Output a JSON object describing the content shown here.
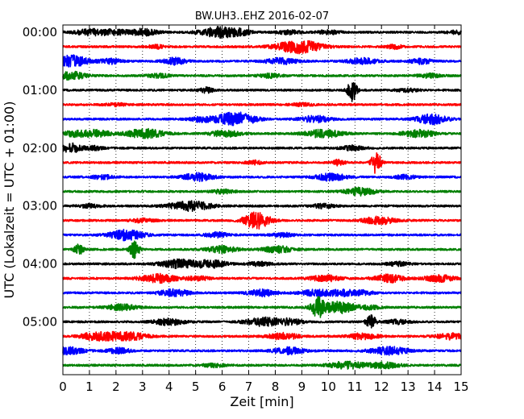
{
  "chart_data": {
    "type": "line",
    "title": "BW.UH3..EHZ 2016-02-07",
    "xlabel": "Zeit  [min]",
    "ylabel": "UTC (Lokalzeit = UTC + 01:00)",
    "xlim": [
      0,
      15
    ],
    "x_ticks": [
      "0",
      "1",
      "2",
      "3",
      "4",
      "5",
      "6",
      "7",
      "8",
      "9",
      "10",
      "11",
      "12",
      "13",
      "14",
      "15"
    ],
    "y_tick_labels": [
      "00:00",
      "01:00",
      "02:00",
      "03:00",
      "04:00",
      "05:00"
    ],
    "grid": true,
    "trace_interval_minutes": 15,
    "trace_count": 24,
    "trace_colors": [
      "#000000",
      "#ff0000",
      "#0000ff",
      "#008000"
    ],
    "bursts": [
      [
        [
          1.1,
          0.45,
          0.5
        ],
        [
          2.0,
          0.3,
          0.3
        ],
        [
          3.0,
          0.5,
          0.4
        ],
        [
          5.9,
          0.8,
          0.5
        ],
        [
          6.7,
          0.35,
          0.3
        ],
        [
          8.5,
          0.3,
          0.3
        ],
        [
          10.0,
          0.3,
          0.3
        ],
        [
          14.9,
          0.25,
          0.3
        ]
      ],
      [
        [
          8.9,
          1.0,
          0.6
        ],
        [
          3.5,
          0.3,
          0.2
        ],
        [
          12.5,
          0.3,
          0.2
        ]
      ],
      [
        [
          0.3,
          0.9,
          0.45
        ],
        [
          1.8,
          0.4,
          0.3
        ],
        [
          4.2,
          0.5,
          0.3
        ],
        [
          8.2,
          0.5,
          0.4
        ],
        [
          11.3,
          0.45,
          0.4
        ],
        [
          13.5,
          0.4,
          0.3
        ]
      ],
      [
        [
          0.3,
          0.6,
          0.4
        ],
        [
          3.6,
          0.3,
          0.3
        ],
        [
          7.8,
          0.3,
          0.3
        ],
        [
          13.8,
          0.3,
          0.3
        ]
      ],
      [
        [
          5.4,
          0.4,
          0.2
        ],
        [
          10.9,
          1.8,
          0.12
        ],
        [
          13.0,
          0.25,
          0.3
        ]
      ],
      [
        [
          2.0,
          0.2,
          0.3
        ],
        [
          9.0,
          0.2,
          0.3
        ]
      ],
      [
        [
          5.2,
          0.4,
          0.3
        ],
        [
          6.2,
          0.7,
          0.4
        ],
        [
          6.8,
          0.7,
          0.4
        ],
        [
          9.5,
          0.5,
          0.4
        ],
        [
          13.9,
          0.75,
          0.4
        ]
      ],
      [
        [
          0.4,
          0.4,
          0.3
        ],
        [
          1.2,
          0.55,
          0.4
        ],
        [
          3.1,
          0.7,
          0.5
        ],
        [
          5.9,
          0.35,
          0.3
        ],
        [
          6.4,
          0.3,
          0.3
        ],
        [
          9.8,
          0.6,
          0.5
        ],
        [
          13.4,
          0.6,
          0.4
        ]
      ],
      [
        [
          0.3,
          0.7,
          0.3
        ],
        [
          1.2,
          0.3,
          0.2
        ],
        [
          10.9,
          0.35,
          0.3
        ]
      ],
      [
        [
          11.8,
          1.9,
          0.12
        ],
        [
          10.4,
          0.5,
          0.15
        ],
        [
          7.2,
          0.3,
          0.2
        ]
      ],
      [
        [
          5.1,
          0.6,
          0.4
        ],
        [
          10.1,
          0.55,
          0.4
        ],
        [
          1.5,
          0.3,
          0.3
        ],
        [
          12.9,
          0.3,
          0.3
        ]
      ],
      [
        [
          11.2,
          0.6,
          0.4
        ],
        [
          6.0,
          0.3,
          0.3
        ]
      ],
      [
        [
          4.8,
          0.75,
          0.55
        ],
        [
          9.8,
          0.3,
          0.3
        ],
        [
          1.0,
          0.25,
          0.3
        ]
      ],
      [
        [
          7.3,
          1.3,
          0.35
        ],
        [
          11.9,
          0.6,
          0.4
        ],
        [
          3.0,
          0.3,
          0.3
        ]
      ],
      [
        [
          2.4,
          0.8,
          0.45
        ],
        [
          5.8,
          0.4,
          0.3
        ],
        [
          8.3,
          0.3,
          0.3
        ]
      ],
      [
        [
          0.6,
          0.8,
          0.12
        ],
        [
          2.7,
          1.4,
          0.12
        ],
        [
          6.0,
          0.5,
          0.4
        ],
        [
          8.1,
          0.5,
          0.4
        ]
      ],
      [
        [
          4.4,
          0.65,
          0.5
        ],
        [
          5.6,
          0.55,
          0.4
        ],
        [
          7.4,
          0.3,
          0.3
        ],
        [
          12.6,
          0.3,
          0.3
        ]
      ],
      [
        [
          3.6,
          0.65,
          0.5
        ],
        [
          5.1,
          0.3,
          0.3
        ],
        [
          9.9,
          0.45,
          0.4
        ],
        [
          12.3,
          0.6,
          0.4
        ],
        [
          14.2,
          0.5,
          0.4
        ]
      ],
      [
        [
          4.2,
          0.55,
          0.4
        ],
        [
          7.5,
          0.5,
          0.4
        ],
        [
          9.5,
          0.45,
          0.4
        ],
        [
          10.5,
          0.45,
          0.4
        ],
        [
          11.3,
          0.3,
          0.3
        ]
      ],
      [
        [
          2.2,
          0.45,
          0.4
        ],
        [
          9.6,
          1.4,
          0.15
        ],
        [
          10.0,
          0.55,
          0.4
        ],
        [
          10.6,
          0.7,
          0.3
        ],
        [
          11.5,
          0.3,
          0.3
        ]
      ],
      [
        [
          4.0,
          0.5,
          0.4
        ],
        [
          7.6,
          0.65,
          0.5
        ],
        [
          8.6,
          0.4,
          0.3
        ],
        [
          11.6,
          1.2,
          0.12
        ],
        [
          12.6,
          0.3,
          0.3
        ]
      ],
      [
        [
          1.2,
          0.55,
          0.4
        ],
        [
          2.0,
          0.45,
          0.4
        ],
        [
          2.7,
          0.45,
          0.4
        ],
        [
          8.3,
          0.5,
          0.4
        ],
        [
          11.3,
          0.45,
          0.4
        ],
        [
          14.6,
          0.45,
          0.4
        ]
      ],
      [
        [
          0.2,
          0.55,
          0.4
        ],
        [
          2.1,
          0.4,
          0.3
        ],
        [
          8.5,
          0.5,
          0.4
        ],
        [
          12.3,
          0.6,
          0.5
        ]
      ],
      [
        [
          10.7,
          0.55,
          0.5
        ],
        [
          12.1,
          0.45,
          0.4
        ],
        [
          5.7,
          0.25,
          0.3
        ]
      ]
    ]
  }
}
